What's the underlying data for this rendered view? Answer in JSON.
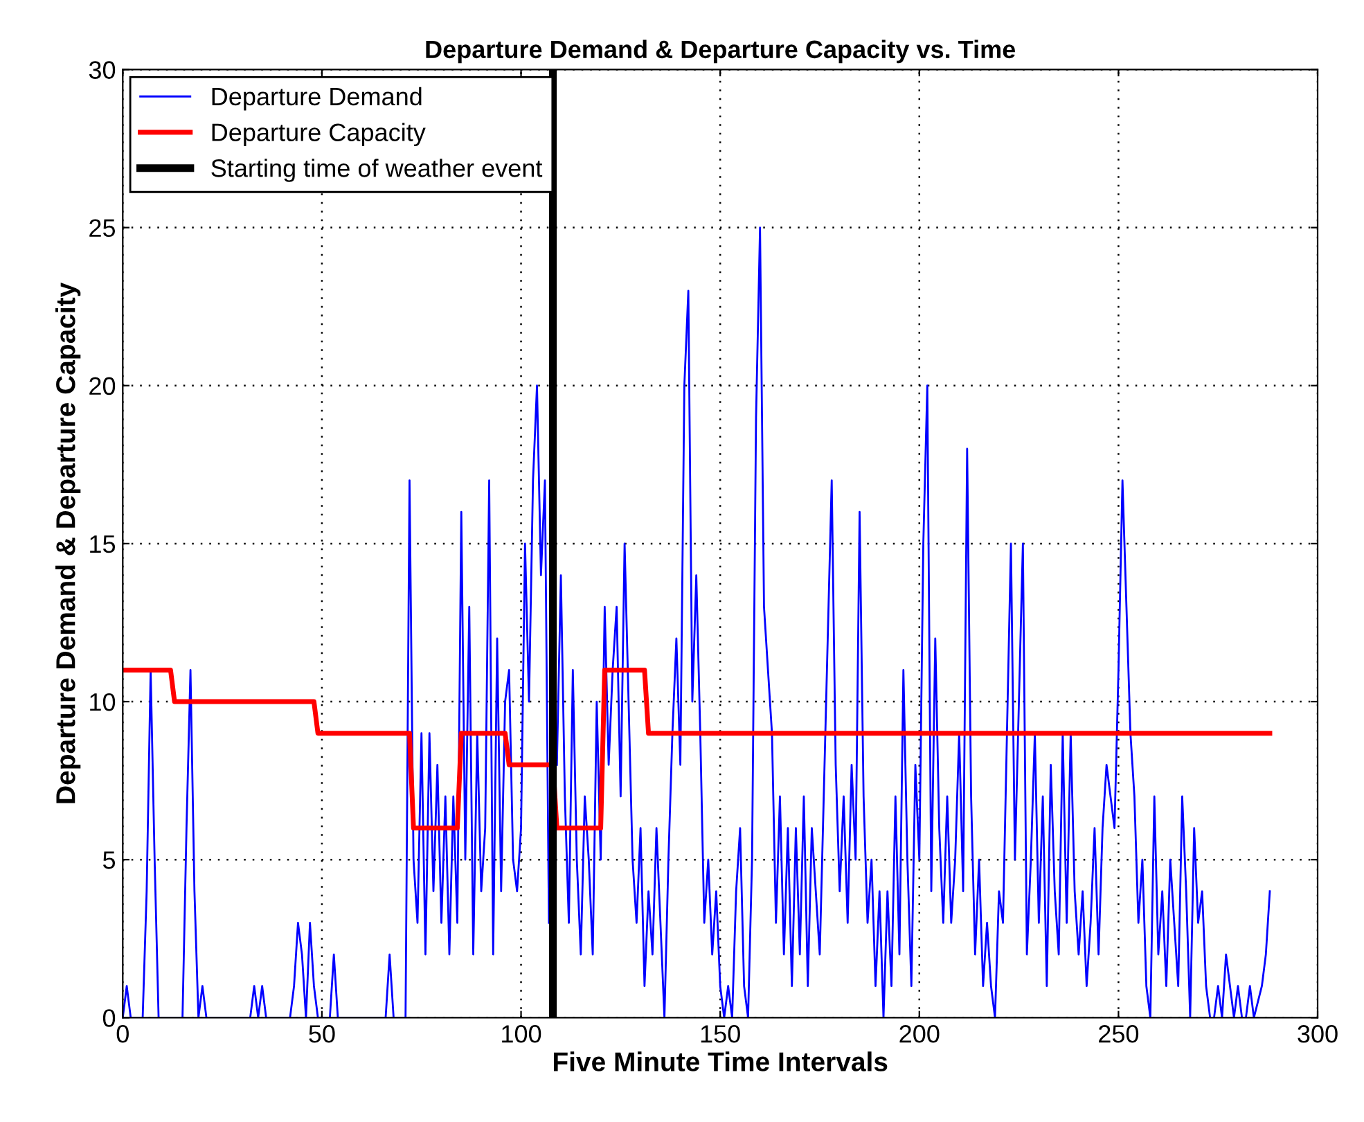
{
  "chart_data": {
    "type": "line",
    "title": "Departure Demand & Departure Capacity vs. Time",
    "xlabel": "Five Minute Time Intervals",
    "ylabel": "Departure Demand & Departure Capacity",
    "xlim": [
      0,
      300
    ],
    "xticks": [
      0,
      50,
      100,
      150,
      200,
      250,
      300
    ],
    "ylim": [
      0,
      30
    ],
    "yticks": [
      0,
      5,
      10,
      15,
      20,
      25,
      30
    ],
    "grid": true,
    "legend": "top left",
    "line_style": "solid",
    "series": [
      {
        "name": "Departure Demand",
        "color": "#0000ff",
        "x": [
          0,
          1,
          2,
          5,
          6,
          7,
          8,
          9,
          15,
          16,
          17,
          18,
          19,
          20,
          21,
          32,
          33,
          34,
          35,
          36,
          42,
          43,
          44,
          45,
          46,
          47,
          48,
          49,
          52,
          53,
          54,
          66,
          67,
          68,
          71,
          72,
          73,
          74,
          75,
          76,
          77,
          78,
          79,
          80,
          81,
          82,
          83,
          84,
          85,
          86,
          87,
          88,
          89,
          90,
          91,
          92,
          93,
          94,
          95,
          96,
          97,
          98,
          99,
          100,
          101,
          102,
          103,
          104,
          105,
          106,
          107,
          108,
          109,
          110,
          111,
          112,
          113,
          114,
          115,
          116,
          117,
          118,
          119,
          120,
          121,
          122,
          123,
          124,
          125,
          126,
          127,
          128,
          129,
          130,
          131,
          132,
          133,
          134,
          135,
          136,
          137,
          138,
          139,
          140,
          141,
          142,
          143,
          144,
          145,
          146,
          147,
          148,
          149,
          150,
          151,
          152,
          153,
          154,
          155,
          156,
          157,
          158,
          159,
          160,
          161,
          162,
          163,
          164,
          165,
          166,
          167,
          168,
          169,
          170,
          171,
          172,
          173,
          174,
          175,
          176,
          177,
          178,
          179,
          180,
          181,
          182,
          183,
          184,
          185,
          186,
          187,
          188,
          189,
          190,
          191,
          192,
          193,
          194,
          195,
          196,
          197,
          198,
          199,
          200,
          201,
          202,
          203,
          204,
          205,
          206,
          207,
          208,
          209,
          210,
          211,
          212,
          213,
          214,
          215,
          216,
          217,
          218,
          219,
          220,
          221,
          222,
          223,
          224,
          225,
          226,
          227,
          228,
          229,
          230,
          231,
          232,
          233,
          234,
          235,
          236,
          237,
          238,
          239,
          240,
          241,
          242,
          243,
          244,
          245,
          246,
          247,
          248,
          249,
          250,
          251,
          252,
          253,
          254,
          255,
          256,
          257,
          258,
          259,
          260,
          261,
          262,
          263,
          264,
          265,
          266,
          267,
          268,
          269,
          270,
          271,
          272,
          273,
          274,
          275,
          276,
          277,
          278,
          279,
          280,
          281,
          282,
          283,
          284,
          286,
          287,
          288
        ],
        "values": [
          0,
          1,
          0,
          0,
          4,
          11,
          5,
          0,
          0,
          6,
          11,
          4,
          0,
          1,
          0,
          0,
          1,
          0,
          1,
          0,
          0,
          1,
          3,
          2,
          0,
          3,
          1,
          0,
          0,
          2,
          0,
          0,
          2,
          0,
          0,
          17,
          5,
          3,
          9,
          2,
          9,
          4,
          8,
          3,
          7,
          2,
          7,
          3,
          16,
          5,
          13,
          2,
          9,
          4,
          6,
          17,
          2,
          12,
          4,
          10,
          11,
          5,
          4,
          6,
          15,
          10,
          17,
          20,
          14,
          17,
          3,
          null,
          8,
          14,
          7,
          3,
          11,
          5,
          2,
          7,
          5,
          2,
          10,
          5,
          13,
          8,
          11,
          13,
          7,
          15,
          10,
          5,
          3,
          6,
          1,
          4,
          2,
          6,
          3,
          0,
          5,
          9,
          12,
          8,
          20,
          23,
          10,
          14,
          9,
          3,
          5,
          2,
          4,
          1,
          0,
          1,
          0,
          4,
          6,
          1,
          0,
          5,
          19,
          25,
          13,
          11,
          9,
          3,
          7,
          2,
          6,
          1,
          6,
          2,
          7,
          1,
          6,
          4,
          2,
          7,
          12,
          17,
          8,
          4,
          7,
          3,
          8,
          5,
          16,
          7,
          3,
          5,
          1,
          4,
          0,
          4,
          1,
          7,
          2,
          11,
          5,
          1,
          8,
          5,
          15,
          20,
          4,
          12,
          6,
          3,
          7,
          3,
          5,
          9,
          4,
          18,
          7,
          2,
          5,
          1,
          3,
          1,
          0,
          4,
          3,
          9,
          15,
          5,
          10,
          15,
          2,
          5,
          9,
          3,
          7,
          1,
          8,
          4,
          2,
          9,
          3,
          9,
          4,
          2,
          4,
          1,
          3,
          6,
          2,
          6,
          8,
          7,
          6,
          11,
          17,
          13,
          9,
          7,
          3,
          5,
          1,
          0,
          7,
          2,
          4,
          1,
          5,
          3,
          1,
          7,
          4,
          0,
          6,
          3,
          4,
          1,
          0,
          0,
          1,
          0,
          2,
          1,
          0,
          1,
          0,
          0,
          1,
          0,
          1,
          2,
          4
        ]
      },
      {
        "name": "Departure Capacity",
        "color": "#ff0000",
        "x": [
          0,
          12,
          13,
          48,
          49,
          72,
          73,
          84,
          85,
          96,
          97,
          108,
          109,
          120,
          121,
          131,
          132,
          288
        ],
        "values": [
          11,
          11,
          10,
          10,
          9,
          9,
          6,
          6,
          9,
          9,
          8,
          8,
          6,
          6,
          11,
          11,
          9,
          9
        ]
      }
    ],
    "ref_lines": [
      {
        "axis": "x",
        "value": 108,
        "label": "Starting time of weather event",
        "color": "#000000",
        "line_style": "solid"
      }
    ]
  }
}
